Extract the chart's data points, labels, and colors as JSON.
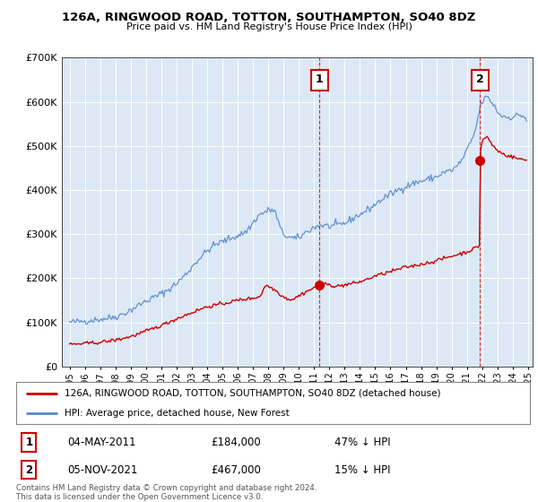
{
  "title": "126A, RINGWOOD ROAD, TOTTON, SOUTHAMPTON, SO40 8DZ",
  "subtitle": "Price paid vs. HM Land Registry's House Price Index (HPI)",
  "legend_line1": "126A, RINGWOOD ROAD, TOTTON, SOUTHAMPTON, SO40 8DZ (detached house)",
  "legend_line2": "HPI: Average price, detached house, New Forest",
  "transaction1_date": "04-MAY-2011",
  "transaction1_price": "£184,000",
  "transaction1_hpi": "47% ↓ HPI",
  "transaction1_year": 2011.35,
  "transaction1_value": 184000,
  "transaction2_date": "05-NOV-2021",
  "transaction2_price": "£467,000",
  "transaction2_hpi": "15% ↓ HPI",
  "transaction2_year": 2021.85,
  "transaction2_value": 467000,
  "footer": "Contains HM Land Registry data © Crown copyright and database right 2024.\nThis data is licensed under the Open Government Licence v3.0.",
  "hpi_color": "#5588cc",
  "price_color": "#cc0000",
  "vline_color": "#cc0000",
  "background_chart": "#dce8f5",
  "background_fig": "#ffffff",
  "grid_color": "#ffffff",
  "ylim_max": 700000,
  "xlim_start": 1994.5,
  "xlim_end": 2025.3
}
